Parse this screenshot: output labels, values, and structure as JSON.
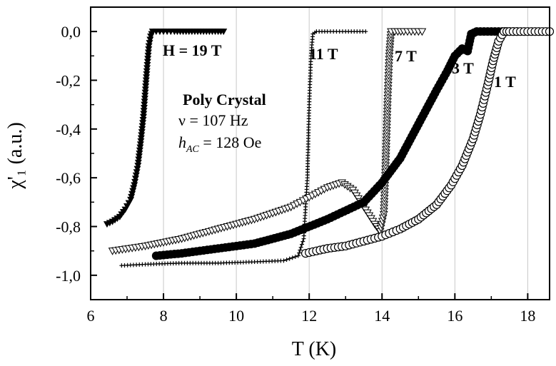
{
  "chart_data": {
    "type": "scatter",
    "xlabel": "T (K)",
    "ylabel": "χ'₁ (a.u.)",
    "xlim": [
      6,
      18.6
    ],
    "ylim": [
      -1.1,
      0.1
    ],
    "xticks": [
      6,
      8,
      10,
      12,
      14,
      16,
      18
    ],
    "yticks": [
      0.0,
      -0.2,
      -0.4,
      -0.6,
      -0.8,
      -1.0
    ],
    "xtick_labels": [
      "6",
      "8",
      "10",
      "12",
      "14",
      "16",
      "18"
    ],
    "ytick_labels": [
      "0,0",
      "-0,2",
      "-0,4",
      "-0,6",
      "-0,8",
      "-1,0"
    ],
    "grid": "vertical",
    "annotations": {
      "sample": "Poly Crystal",
      "frequency": "ν = 107 Hz",
      "hac_symbol": "h",
      "hac_subscript": "AC",
      "hac_value": " = 128 Oe"
    },
    "series": [
      {
        "name": "H = 19 T",
        "marker": "filled-triangle-down",
        "color": "#000000",
        "x": [
          6.45,
          6.6,
          6.8,
          6.95,
          7.1,
          7.2,
          7.3,
          7.38,
          7.45,
          7.5,
          7.55,
          7.6,
          7.65,
          7.7,
          7.8,
          8.0,
          8.3,
          8.7,
          9.1,
          9.5,
          9.65
        ],
        "y": [
          -0.79,
          -0.78,
          -0.76,
          -0.73,
          -0.69,
          -0.63,
          -0.55,
          -0.45,
          -0.35,
          -0.25,
          -0.15,
          -0.06,
          -0.02,
          0.0,
          0.0,
          0.0,
          0.0,
          0.0,
          0.0,
          0.0,
          0.0
        ]
      },
      {
        "name": "11 T",
        "marker": "plus",
        "color": "#000000",
        "x": [
          6.85,
          7.5,
          8.5,
          9.5,
          10.5,
          11.3,
          11.7,
          11.85,
          11.95,
          12.0,
          12.05,
          12.1,
          12.2,
          12.5,
          13.0,
          13.55
        ],
        "y": [
          -0.96,
          -0.955,
          -0.95,
          -0.95,
          -0.945,
          -0.94,
          -0.92,
          -0.85,
          -0.6,
          -0.3,
          -0.1,
          -0.01,
          0.0,
          0.0,
          0.0,
          0.0
        ]
      },
      {
        "name": "7 T",
        "marker": "open-triangle-down",
        "color": "#000000",
        "x": [
          6.6,
          7.5,
          8.5,
          9.5,
          10.5,
          11.5,
          12.0,
          12.5,
          12.9,
          13.2,
          13.5,
          13.8,
          13.95,
          14.05,
          14.1,
          14.15,
          14.2,
          14.25,
          14.35,
          14.6,
          14.9,
          15.1
        ],
        "y": [
          -0.9,
          -0.88,
          -0.85,
          -0.81,
          -0.77,
          -0.72,
          -0.68,
          -0.64,
          -0.62,
          -0.65,
          -0.72,
          -0.79,
          -0.82,
          -0.75,
          -0.55,
          -0.3,
          -0.1,
          0.0,
          0.0,
          0.0,
          0.0,
          0.0
        ]
      },
      {
        "name": "3 T",
        "marker": "filled-circle",
        "color": "#000000",
        "x": [
          7.8,
          8.5,
          9.5,
          10.5,
          11.5,
          12.5,
          13.5,
          14.0,
          14.5,
          15.0,
          15.5,
          15.8,
          16.0,
          16.2,
          16.35,
          16.45,
          16.6,
          17.0,
          17.5,
          17.7
        ],
        "y": [
          -0.92,
          -0.91,
          -0.89,
          -0.87,
          -0.83,
          -0.77,
          -0.7,
          -0.62,
          -0.52,
          -0.38,
          -0.24,
          -0.16,
          -0.1,
          -0.07,
          -0.08,
          -0.01,
          0.0,
          0.0,
          0.0,
          0.0
        ]
      },
      {
        "name": "1 T",
        "marker": "open-circle",
        "color": "#000000",
        "x": [
          11.9,
          12.5,
          13.0,
          13.5,
          14.0,
          14.5,
          15.0,
          15.5,
          15.9,
          16.2,
          16.5,
          16.7,
          16.9,
          17.05,
          17.2,
          17.35,
          17.5,
          17.8,
          18.1,
          18.4,
          18.6
        ],
        "y": [
          -0.91,
          -0.89,
          -0.88,
          -0.86,
          -0.84,
          -0.81,
          -0.77,
          -0.71,
          -0.63,
          -0.55,
          -0.44,
          -0.34,
          -0.22,
          -0.12,
          -0.04,
          0.0,
          0.0,
          0.0,
          0.0,
          0.0,
          0.0
        ]
      }
    ]
  }
}
